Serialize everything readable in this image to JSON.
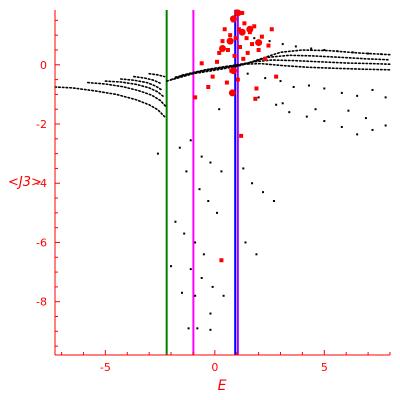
{
  "chart_data": {
    "type": "scatter",
    "title": "",
    "xlabel": "E",
    "ylabel": "<J3>",
    "xlim": [
      -7.3,
      8.0
    ],
    "ylim": [
      -9.8,
      1.85
    ],
    "grid": false,
    "axis_color": "#ff0000",
    "x_ticks": [
      -5,
      0,
      5
    ],
    "x_tick_labels": [
      "-5",
      "0",
      "5"
    ],
    "y_ticks": [
      0,
      -2,
      -4,
      -6,
      -8
    ],
    "y_tick_labels": [
      "0",
      "-2",
      "-4",
      "-6",
      "-8"
    ],
    "vlines": [
      {
        "x": -2.2,
        "color": "#008000"
      },
      {
        "x": -0.98,
        "color": "#ff00ff"
      },
      {
        "x": 0.93,
        "color": "#0000ff"
      },
      {
        "x": 1.05,
        "color": "#a000ff"
      }
    ],
    "curves": [
      {
        "color": "#000000",
        "x": [
          -7.3,
          -6.5,
          -5.5,
          -4.5,
          -3.6,
          -3.0,
          -2.6,
          -2.3
        ],
        "y": [
          -0.75,
          -0.78,
          -0.88,
          -1.0,
          -1.18,
          -1.35,
          -1.52,
          -1.75
        ]
      },
      {
        "color": "#000000",
        "x": [
          -5.8,
          -5.0,
          -4.2,
          -3.5,
          -2.9,
          -2.5,
          -2.25
        ],
        "y": [
          -0.6,
          -0.65,
          -0.74,
          -0.87,
          -1.02,
          -1.2,
          -1.4
        ]
      },
      {
        "color": "#000000",
        "x": [
          -5.0,
          -4.3,
          -3.6,
          -3.0,
          -2.6,
          -2.3
        ],
        "y": [
          -0.55,
          -0.58,
          -0.66,
          -0.78,
          -0.92,
          -1.1
        ]
      },
      {
        "color": "#000000",
        "x": [
          -4.3,
          -3.7,
          -3.1,
          -2.7,
          -2.4
        ],
        "y": [
          -0.48,
          -0.52,
          -0.6,
          -0.72,
          -0.86
        ]
      },
      {
        "color": "#000000",
        "x": [
          -3.7,
          -3.2,
          -2.8,
          -2.5
        ],
        "y": [
          -0.4,
          -0.45,
          -0.52,
          -0.62
        ]
      },
      {
        "color": "#000000",
        "x": [
          -3.0,
          -2.6,
          -2.3
        ],
        "y": [
          -0.3,
          -0.34,
          -0.4
        ]
      },
      {
        "color": "#000000",
        "x": [
          -2.2,
          -1.7,
          -1.0,
          -0.3,
          0.5,
          1.2,
          2.0,
          3.0,
          4.0,
          5.2,
          6.5,
          8.0
        ],
        "y": [
          -0.55,
          -0.45,
          -0.3,
          -0.22,
          -0.12,
          -0.02,
          0.18,
          0.42,
          0.5,
          0.48,
          0.4,
          0.34
        ]
      },
      {
        "color": "#000000",
        "x": [
          -2.0,
          -1.5,
          -0.8,
          0.0,
          0.8,
          1.5,
          2.4,
          3.4,
          4.5,
          5.8,
          7.0,
          8.0
        ],
        "y": [
          -0.5,
          -0.38,
          -0.25,
          -0.15,
          -0.05,
          0.05,
          0.25,
          0.32,
          0.3,
          0.25,
          0.2,
          0.17
        ]
      },
      {
        "color": "#000000",
        "x": [
          -1.8,
          -1.2,
          -0.5,
          0.3,
          1.0,
          1.8,
          2.6,
          3.6,
          4.8,
          6.0,
          7.2,
          8.0
        ],
        "y": [
          -0.42,
          -0.3,
          -0.18,
          -0.08,
          0.0,
          0.1,
          0.16,
          0.14,
          0.1,
          0.06,
          0.04,
          0.02
        ]
      },
      {
        "color": "#000000",
        "x": [
          -1.5,
          -0.9,
          -0.2,
          0.6,
          1.3,
          2.1,
          3.0,
          4.2,
          5.5,
          6.8,
          8.0
        ],
        "y": [
          -0.35,
          -0.25,
          -0.14,
          -0.05,
          0.02,
          0.04,
          -0.02,
          -0.08,
          -0.12,
          -0.15,
          -0.17
        ]
      }
    ],
    "scatter_black": [
      [
        1.2,
        1.05
      ],
      [
        1.8,
        0.9
      ],
      [
        2.5,
        0.8
      ],
      [
        3.1,
        0.7
      ],
      [
        3.7,
        0.62
      ],
      [
        4.4,
        0.55
      ],
      [
        5.0,
        0.5
      ],
      [
        5.6,
        0.46
      ],
      [
        6.3,
        0.42
      ],
      [
        7.0,
        0.38
      ],
      [
        7.6,
        0.36
      ],
      [
        1.5,
        -0.3
      ],
      [
        2.3,
        -0.45
      ],
      [
        3.0,
        -0.55
      ],
      [
        3.6,
        -0.75
      ],
      [
        4.3,
        -0.7
      ],
      [
        5.0,
        -0.8
      ],
      [
        5.8,
        -0.95
      ],
      [
        6.5,
        -1.05
      ],
      [
        7.2,
        -0.85
      ],
      [
        7.8,
        -1.1
      ],
      [
        2.0,
        -1.1
      ],
      [
        2.8,
        -1.35
      ],
      [
        3.4,
        -1.6
      ],
      [
        4.2,
        -1.75
      ],
      [
        5.0,
        -1.9
      ],
      [
        5.8,
        -2.1
      ],
      [
        6.5,
        -2.35
      ],
      [
        7.2,
        -2.2
      ],
      [
        7.8,
        -2.05
      ],
      [
        4.6,
        -1.5
      ],
      [
        6.1,
        -1.55
      ],
      [
        6.9,
        -1.8
      ],
      [
        3.1,
        -1.3
      ],
      [
        0.2,
        -1.5
      ],
      [
        -1.6,
        -2.8
      ],
      [
        -1.1,
        -2.55
      ],
      [
        -0.6,
        -3.1
      ],
      [
        -0.2,
        -3.3
      ],
      [
        0.3,
        -3.6
      ],
      [
        1.3,
        -3.5
      ],
      [
        1.7,
        -4.0
      ],
      [
        2.2,
        -4.3
      ],
      [
        2.7,
        -4.6
      ],
      [
        -2.6,
        -3.0
      ],
      [
        -1.3,
        -3.6
      ],
      [
        -0.7,
        -4.2
      ],
      [
        -0.3,
        -4.6
      ],
      [
        0.1,
        -5.0
      ],
      [
        -1.8,
        -5.3
      ],
      [
        -1.4,
        -5.7
      ],
      [
        -0.9,
        -6.0
      ],
      [
        -0.5,
        -6.4
      ],
      [
        1.4,
        -6.0
      ],
      [
        1.9,
        -6.4
      ],
      [
        -2.0,
        -6.8
      ],
      [
        -1.1,
        -6.9
      ],
      [
        -0.6,
        -7.2
      ],
      [
        -0.1,
        -7.5
      ],
      [
        0.4,
        -7.8
      ],
      [
        -1.5,
        -7.7
      ],
      [
        -0.9,
        -7.8
      ],
      [
        -0.2,
        -8.4
      ],
      [
        -1.2,
        -8.9
      ],
      [
        -0.8,
        -8.9
      ],
      [
        -0.2,
        -8.95
      ]
    ],
    "scatter_red": [
      [
        -0.9,
        -1.1
      ],
      [
        -0.3,
        -0.75
      ],
      [
        -0.1,
        -0.4
      ],
      [
        0.1,
        0.1
      ],
      [
        0.2,
        0.4
      ],
      [
        0.35,
        0.8
      ],
      [
        0.45,
        1.2
      ],
      [
        0.6,
        0.5
      ],
      [
        0.7,
        1.0
      ],
      [
        0.75,
        -0.2
      ],
      [
        0.8,
        -0.95
      ],
      [
        0.85,
        1.5
      ],
      [
        0.9,
        0.3
      ],
      [
        0.95,
        0.9
      ],
      [
        1.0,
        1.8
      ],
      [
        1.05,
        -0.5
      ],
      [
        1.1,
        1.2
      ],
      [
        1.15,
        0.6
      ],
      [
        1.25,
        1.75
      ],
      [
        1.3,
        0.2
      ],
      [
        1.35,
        1.4
      ],
      [
        1.45,
        0.9
      ],
      [
        1.5,
        0.4
      ],
      [
        1.6,
        1.1
      ],
      [
        1.7,
        0.7
      ],
      [
        1.8,
        1.3
      ],
      [
        1.9,
        -0.8
      ],
      [
        2.0,
        0.5
      ],
      [
        2.15,
        0.95
      ],
      [
        2.3,
        0.2
      ],
      [
        2.45,
        0.65
      ],
      [
        2.6,
        1.2
      ],
      [
        2.8,
        -0.4
      ],
      [
        -0.6,
        0.05
      ],
      [
        0.55,
        -0.6
      ],
      [
        1.2,
        -2.4
      ],
      [
        0.3,
        -6.6
      ],
      [
        1.85,
        -1.15
      ]
    ],
    "scatter_red_large": [
      [
        0.85,
        1.55
      ],
      [
        1.05,
        1.75
      ],
      [
        0.7,
        0.8
      ],
      [
        1.25,
        1.1
      ],
      [
        0.85,
        -0.2
      ],
      [
        1.6,
        1.2
      ],
      [
        2.0,
        0.75
      ],
      [
        0.8,
        -0.95
      ],
      [
        0.35,
        0.55
      ]
    ]
  }
}
